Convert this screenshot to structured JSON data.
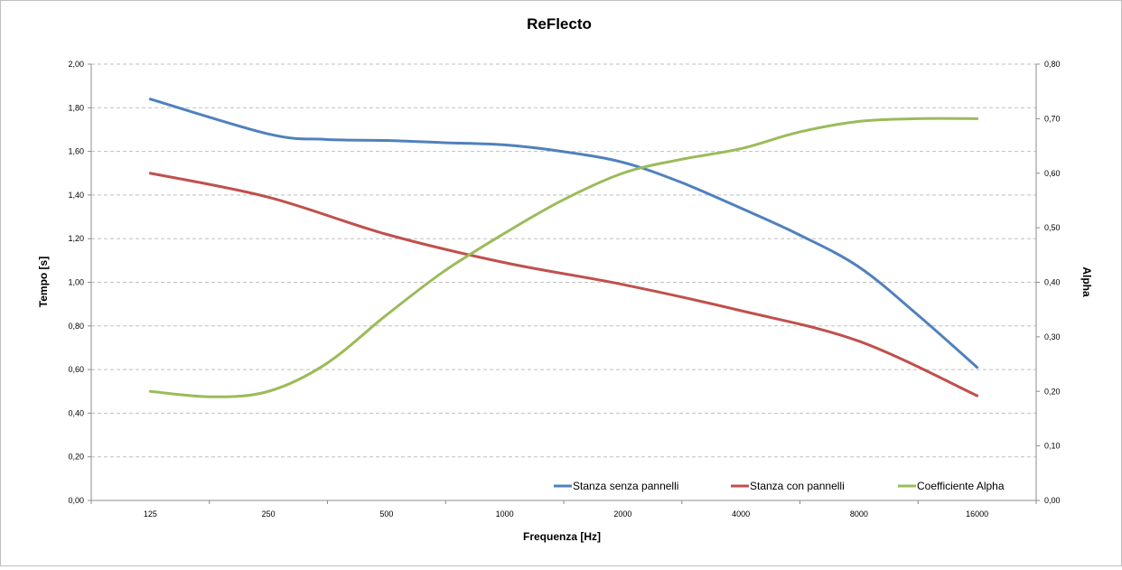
{
  "chart_data": {
    "type": "line",
    "title": "ReFlecto",
    "xlabel": "Frequenza [Hz]",
    "ylabel": "Tempo [s]",
    "y2label": "Alpha",
    "categories": [
      "125",
      "250",
      "500",
      "1000",
      "2000",
      "4000",
      "8000",
      "16000"
    ],
    "ylim": [
      0,
      2
    ],
    "y2lim": [
      0,
      0.8
    ],
    "yticks": [
      "0,00",
      "0,20",
      "0,40",
      "0,60",
      "0,80",
      "1,00",
      "1,20",
      "1,40",
      "1,60",
      "1,80",
      "2,00"
    ],
    "y2ticks": [
      "0,00",
      "0,10",
      "0,20",
      "0,30",
      "0,40",
      "0,50",
      "0,60",
      "0,70",
      "0,80"
    ],
    "grid": true,
    "legend_position": "bottom-right",
    "series": [
      {
        "name": "Stanza senza pannelli",
        "axis": "left",
        "color": "#4f81bd",
        "x": [
          125,
          250,
          350,
          500,
          700,
          1000,
          1400,
          2000,
          2800,
          4000,
          5600,
          8000,
          11300,
          16000
        ],
        "values": [
          1.84,
          1.68,
          1.655,
          1.65,
          1.64,
          1.63,
          1.6,
          1.55,
          1.46,
          1.34,
          1.22,
          1.07,
          0.85,
          0.61
        ]
      },
      {
        "name": "Stanza con pannelli",
        "axis": "left",
        "color": "#c0504d",
        "x": [
          125,
          250,
          500,
          1000,
          2000,
          4000,
          8000,
          16000
        ],
        "values": [
          1.5,
          1.39,
          1.22,
          1.09,
          0.99,
          0.87,
          0.73,
          0.48
        ]
      },
      {
        "name": "Coefficiente Alpha",
        "axis": "right",
        "color": "#9bbb59",
        "x": [
          125,
          180,
          250,
          350,
          500,
          700,
          1000,
          1400,
          2000,
          2800,
          4000,
          5600,
          8000,
          11300,
          16000
        ],
        "values": [
          0.2,
          0.19,
          0.2,
          0.25,
          0.34,
          0.42,
          0.49,
          0.55,
          0.6,
          0.625,
          0.645,
          0.675,
          0.695,
          0.7,
          0.7
        ]
      }
    ]
  }
}
